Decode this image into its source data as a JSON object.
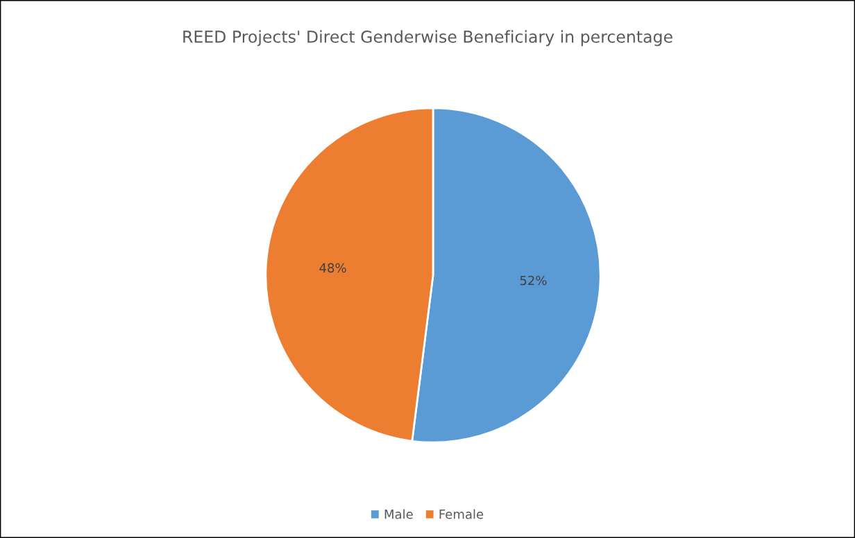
{
  "chart_data": {
    "type": "pie",
    "title": "REED Projects' Direct Genderwise Beneficiary in percentage",
    "categories": [
      "Male",
      "Female"
    ],
    "values": [
      52,
      48
    ],
    "colors": [
      "#5b9bd5",
      "#ed7d31"
    ],
    "value_labels": [
      "52%",
      "48%"
    ],
    "legend": "bottom"
  }
}
